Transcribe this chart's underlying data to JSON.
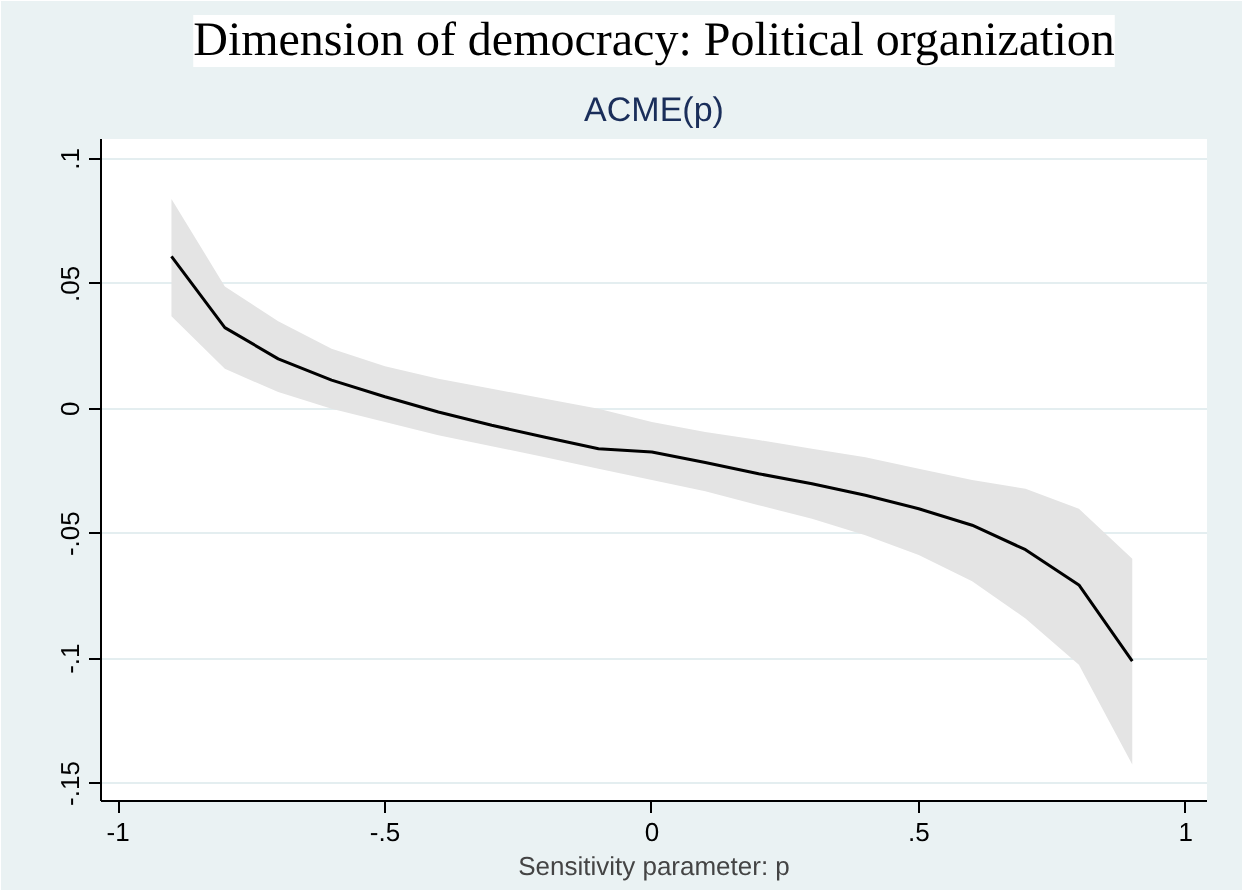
{
  "chart_data": {
    "type": "line",
    "title": "Dimension of democracy: Political organization",
    "subtitle": "ACME(p)",
    "xlabel": "Sensitivity parameter: p",
    "x": [
      -0.9,
      -0.8,
      -0.7,
      -0.6,
      -0.5,
      -0.4,
      -0.3,
      -0.2,
      -0.1,
      0,
      0.1,
      0.2,
      0.3,
      0.4,
      0.5,
      0.6,
      0.7,
      0.8,
      0.9
    ],
    "series": [
      {
        "color": "#000000",
        "values": [
          0.061,
          0.0325,
          0.02,
          0.0115,
          0.0048,
          -0.0013,
          -0.0066,
          -0.0114,
          -0.016,
          -0.0173,
          -0.0215,
          -0.026,
          -0.03,
          -0.0346,
          -0.04,
          -0.0466,
          -0.0564,
          -0.0705,
          -0.101
        ],
        "lower": [
          0.037,
          0.016,
          0.0067,
          0.0,
          -0.0053,
          -0.0106,
          -0.015,
          -0.0194,
          -0.024,
          -0.0285,
          -0.033,
          -0.0386,
          -0.044,
          -0.0506,
          -0.0585,
          -0.069,
          -0.0839,
          -0.1025,
          -0.1424
        ],
        "upper": [
          0.084,
          0.049,
          0.035,
          0.024,
          0.017,
          0.012,
          0.008,
          0.004,
          0.0,
          -0.0053,
          -0.0093,
          -0.0125,
          -0.016,
          -0.0194,
          -0.024,
          -0.0285,
          -0.032,
          -0.04,
          -0.06
        ]
      }
    ],
    "xlim": [
      -1.032,
      1.04
    ],
    "ylim": [
      -0.157,
      0.108
    ],
    "xticks": [
      {
        "value": -1,
        "label": "-1"
      },
      {
        "value": -0.5,
        "label": "-.5"
      },
      {
        "value": 0,
        "label": "0"
      },
      {
        "value": 0.5,
        "label": ".5"
      },
      {
        "value": 1,
        "label": "1"
      }
    ],
    "yticks": [
      {
        "value": -0.15,
        "label": "-.15"
      },
      {
        "value": -0.1,
        "label": "-.1"
      },
      {
        "value": -0.05,
        "label": "-.05"
      },
      {
        "value": 0,
        "label": "0"
      },
      {
        "value": 0.05,
        "label": ".05"
      },
      {
        "value": 0.1,
        "label": ".1"
      }
    ],
    "grid": "y",
    "marker": "none",
    "line_style": "solid"
  }
}
